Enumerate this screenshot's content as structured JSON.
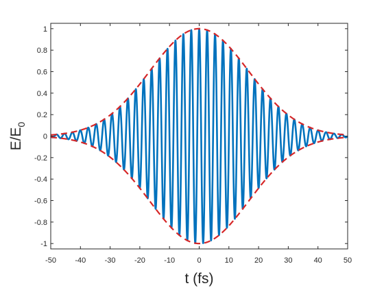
{
  "chart_data": {
    "type": "line",
    "xlabel": "t (fs)",
    "ylabel": {
      "main": "E/E",
      "subscript": "0"
    },
    "xlim": [
      -50,
      50
    ],
    "ylim": [
      -1.05,
      1.05
    ],
    "xticks": [
      -50,
      -40,
      -30,
      -20,
      -10,
      0,
      10,
      20,
      30,
      40,
      50
    ],
    "yticks": [
      -1,
      -0.8,
      -0.6,
      -0.4,
      -0.2,
      0,
      0.2,
      0.4,
      0.6,
      0.8,
      1
    ],
    "xtick_labels": [
      "-50",
      "-40",
      "-30",
      "-20",
      "-10",
      "0",
      "10",
      "20",
      "30",
      "40",
      "50"
    ],
    "ytick_labels": [
      "-1",
      "-0.8",
      "-0.6",
      "-0.4",
      "-0.2",
      "0",
      "0.2",
      "0.4",
      "0.6",
      "0.8",
      "1"
    ],
    "grid": false,
    "box": true,
    "series": [
      {
        "kind": "carrier-wave",
        "color": "#0072BD",
        "style": "solid",
        "formula": "y = exp(-t^2 / tau^2) * cos(omega * t)",
        "amplitude": 1,
        "tau_fs": 23.5,
        "period_fs": 2.67,
        "phase": 0,
        "t_range": [
          -50,
          50
        ]
      },
      {
        "kind": "envelope-upper",
        "color": "#D62728",
        "style": "dashed",
        "formula": "y = exp(-t^2 / tau^2)",
        "tau_fs": 23.5,
        "t_range": [
          -50,
          50
        ]
      },
      {
        "kind": "envelope-lower",
        "color": "#D62728",
        "style": "dashed",
        "formula": "y = -exp(-t^2 / tau^2)",
        "tau_fs": 23.5,
        "t_range": [
          -50,
          50
        ]
      }
    ]
  }
}
